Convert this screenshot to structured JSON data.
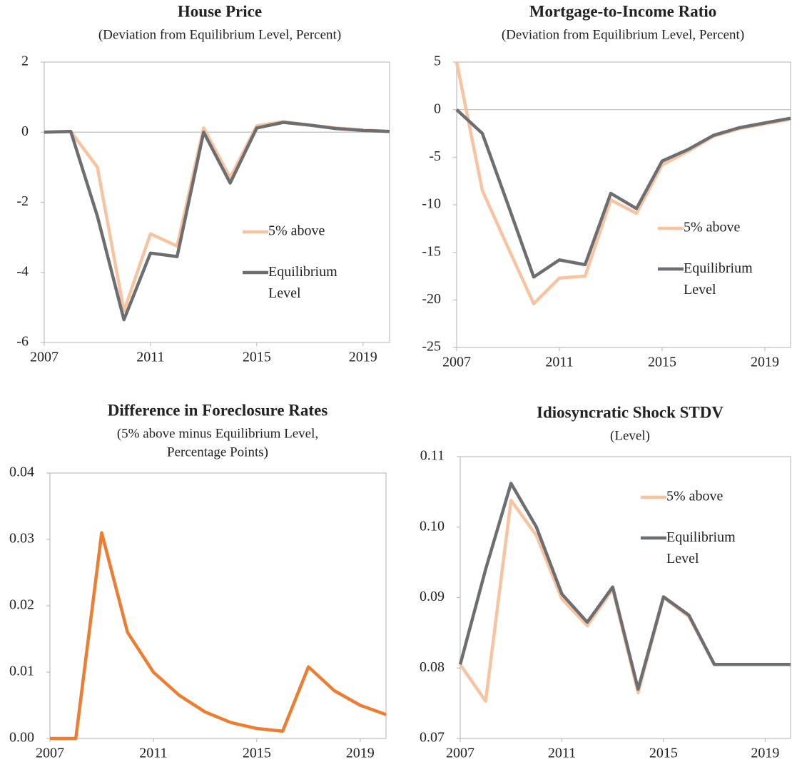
{
  "chart_data": [
    {
      "type": "line",
      "title": "House Price",
      "subtitle": [
        "(Deviation  from  Equilibrium  Level,  Percent)"
      ],
      "x": [
        2007,
        2008,
        2009,
        2010,
        2011,
        2012,
        2013,
        2014,
        2015,
        2016,
        2017,
        2018,
        2019,
        2020
      ],
      "xlim": [
        2007,
        2020
      ],
      "xticks": [
        2007,
        2011,
        2015,
        2019
      ],
      "ylim": [
        -6,
        2
      ],
      "yticks": [
        -6,
        -4,
        -2,
        0,
        2
      ],
      "legend": "right",
      "series": [
        {
          "name": "5% above",
          "color": "#f8c3a0",
          "values": [
            0,
            0.02,
            -1.0,
            -5.1,
            -2.9,
            -3.25,
            0.12,
            -1.3,
            0.18,
            0.3,
            0.2,
            0.12,
            0.06,
            0.02
          ]
        },
        {
          "name": "Equilibrium Level",
          "color": "#6d6e71",
          "values": [
            0,
            0.02,
            -2.4,
            -5.35,
            -3.45,
            -3.55,
            0,
            -1.45,
            0.12,
            0.28,
            0.2,
            0.1,
            0.05,
            0.02
          ]
        }
      ]
    },
    {
      "type": "line",
      "title": "Mortgage-to-Income Ratio",
      "subtitle": [
        "(Deviation  from  Equilibrium  Level,  Percent)"
      ],
      "x": [
        2007,
        2008,
        2009,
        2010,
        2011,
        2012,
        2013,
        2014,
        2015,
        2016,
        2017,
        2018,
        2019,
        2020
      ],
      "xlim": [
        2007,
        2020
      ],
      "xticks": [
        2007,
        2011,
        2015,
        2019
      ],
      "ylim": [
        -25,
        5
      ],
      "yticks": [
        -25,
        -20,
        -15,
        -10,
        -5,
        0,
        5
      ],
      "legend": "right",
      "series": [
        {
          "name": "5% above",
          "color": "#f8c3a0",
          "values": [
            5,
            -8.5,
            -14.5,
            -20.4,
            -17.7,
            -17.5,
            -9.5,
            -10.9,
            -5.8,
            -4.4,
            -2.8,
            -2.0,
            -1.5,
            -1.0
          ]
        },
        {
          "name": "Equilibrium Level",
          "color": "#6d6e71",
          "values": [
            0,
            -2.5,
            -10,
            -17.6,
            -15.8,
            -16.3,
            -8.8,
            -10.4,
            -5.4,
            -4.2,
            -2.7,
            -1.9,
            -1.4,
            -0.9
          ]
        }
      ]
    },
    {
      "type": "line",
      "title": "Difference in Foreclosure Rates",
      "subtitle": [
        "(5% above minus Equilibrium Level,",
        "Percentage Points)"
      ],
      "x": [
        2007,
        2008,
        2009,
        2010,
        2011,
        2012,
        2013,
        2014,
        2015,
        2016,
        2017,
        2018,
        2019,
        2020
      ],
      "xlim": [
        2007,
        2020
      ],
      "xticks": [
        2007,
        2011,
        2015,
        2019
      ],
      "ylim": [
        0,
        0.04
      ],
      "yticks": [
        {
          "value": 0,
          "label": "0.00"
        },
        {
          "value": 0.01,
          "label": "0.01"
        },
        {
          "value": 0.02,
          "label": "0.02"
        },
        {
          "value": 0.03,
          "label": "0.03"
        },
        {
          "value": 0.04,
          "label": "0.04"
        }
      ],
      "series": [
        {
          "color": "#ed7d31",
          "values": [
            0,
            0,
            0.031,
            0.016,
            0.01,
            0.0065,
            0.004,
            0.0024,
            0.0015,
            0.0011,
            0.0108,
            0.0072,
            0.005,
            0.0036
          ]
        }
      ]
    },
    {
      "type": "line",
      "title": "Idiosyncratic Shock STDV",
      "subtitle": [
        "(Level)"
      ],
      "x": [
        2007,
        2008,
        2009,
        2010,
        2011,
        2012,
        2013,
        2014,
        2015,
        2016,
        2017,
        2018,
        2019,
        2020
      ],
      "xlim": [
        2007,
        2020
      ],
      "xticks": [
        2007,
        2011,
        2015,
        2019
      ],
      "ylim": [
        0.07,
        0.11
      ],
      "yticks": [
        0.07,
        0.08,
        0.09,
        {
          "value": 0.1,
          "label": "0.10"
        },
        0.11
      ],
      "legend": "right",
      "series": [
        {
          "name": "5% above",
          "color": "#f8c3a0",
          "values": [
            0.0805,
            0.0753,
            0.1038,
            0.0988,
            0.0898,
            0.086,
            0.0912,
            0.0765,
            0.09,
            0.0873,
            0.0805,
            0.0805,
            0.0805,
            0.0805
          ]
        },
        {
          "name": "Equilibrium Level",
          "color": "#6d6e71",
          "values": [
            0.0805,
            0.094,
            0.1062,
            0.1,
            0.0905,
            0.0865,
            0.0915,
            0.077,
            0.0901,
            0.0875,
            0.0805,
            0.0805,
            0.0805,
            0.0805
          ]
        }
      ]
    }
  ]
}
